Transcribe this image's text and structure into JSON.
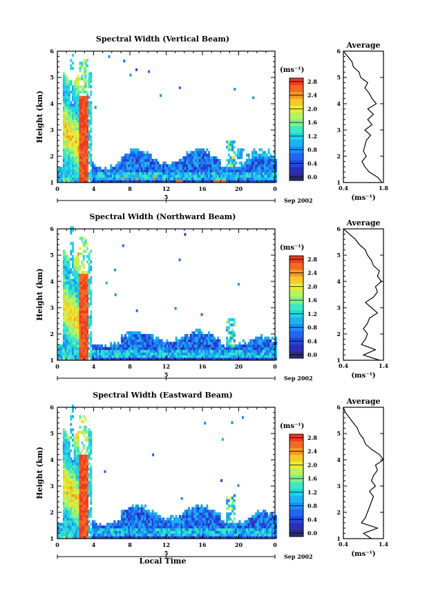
{
  "chart_data": [
    {
      "type": "heatmap",
      "title": "Spectral Width (Vertical Beam)",
      "ylabel": "Height (km)",
      "x_ticks": [
        "0",
        "4",
        "8",
        "12",
        "16",
        "20",
        "0"
      ],
      "y_ticks": [
        "1",
        "2",
        "3",
        "4",
        "5",
        "6"
      ],
      "xlim": [
        0,
        24
      ],
      "ylim": [
        1,
        6
      ],
      "day_label": "5",
      "date_label": "Sep 2002",
      "colorbar": {
        "unit_label": "(ms⁻¹)",
        "ticks": [
          "0.0",
          "0.4",
          "0.8",
          "1.2",
          "1.6",
          "2.0",
          "2.4",
          "2.8"
        ],
        "range": [
          0,
          3.0
        ]
      },
      "average": {
        "title": "Average",
        "x_ticks": [
          "0.4",
          "1.8"
        ],
        "xlim": [
          0.4,
          1.8
        ],
        "xlabel": "(ms⁻¹)",
        "heights": [
          1.0,
          1.2,
          1.4,
          1.6,
          1.8,
          2.0,
          2.2,
          2.4,
          2.6,
          2.8,
          3.0,
          3.2,
          3.4,
          3.6,
          3.8,
          4.0,
          4.2,
          4.4,
          4.6,
          4.8,
          5.0,
          5.2,
          5.4,
          5.6,
          5.8,
          6.0
        ],
        "values": [
          1.75,
          1.6,
          1.3,
          1.15,
          1.05,
          1.2,
          1.1,
          1.15,
          1.2,
          1.35,
          1.15,
          1.4,
          1.25,
          1.45,
          1.25,
          1.55,
          1.4,
          1.3,
          1.15,
          1.25,
          1.0,
          0.95,
          0.75,
          0.7,
          0.55,
          0.4
        ]
      },
      "seed": 11
    },
    {
      "type": "heatmap",
      "title": "Spectral Width (Northward Beam)",
      "ylabel": "Height (km)",
      "x_ticks": [
        "0",
        "4",
        "8",
        "12",
        "16",
        "20",
        "0"
      ],
      "y_ticks": [
        "1",
        "2",
        "3",
        "4",
        "5",
        "6"
      ],
      "xlim": [
        0,
        24
      ],
      "ylim": [
        1,
        6
      ],
      "day_label": "5",
      "date_label": "Sep 2002",
      "colorbar": {
        "unit_label": "(ms⁻¹)",
        "ticks": [
          "0.0",
          "0.4",
          "0.8",
          "1.2",
          "1.6",
          "2.0",
          "2.4",
          "2.8"
        ],
        "range": [
          0,
          3.0
        ]
      },
      "average": {
        "title": "Average",
        "x_ticks": [
          "0.4",
          "1.4"
        ],
        "xlim": [
          0.4,
          1.4
        ],
        "xlabel": "(ms⁻¹)",
        "heights": [
          1.0,
          1.2,
          1.4,
          1.6,
          1.8,
          2.0,
          2.2,
          2.4,
          2.6,
          2.8,
          3.0,
          3.2,
          3.4,
          3.6,
          3.8,
          4.0,
          4.2,
          4.4,
          4.6,
          4.8,
          5.0,
          5.2,
          5.4,
          5.6,
          5.8,
          6.0
        ],
        "values": [
          1.3,
          0.9,
          1.2,
          0.85,
          0.95,
          1.0,
          0.9,
          1.0,
          1.05,
          1.25,
          1.1,
          0.95,
          1.15,
          1.25,
          1.2,
          1.35,
          1.25,
          1.3,
          1.15,
          1.1,
          1.0,
          0.95,
          0.8,
          0.7,
          0.55,
          0.4
        ]
      },
      "seed": 23
    },
    {
      "type": "heatmap",
      "title": "Spectral Width (Eastward Beam)",
      "ylabel": "Height (km)",
      "x_ticks": [
        "0",
        "4",
        "8",
        "12",
        "16",
        "20",
        "0"
      ],
      "y_ticks": [
        "1",
        "2",
        "3",
        "4",
        "5",
        "6"
      ],
      "xlim": [
        0,
        24
      ],
      "ylim": [
        1,
        6
      ],
      "day_label": "5",
      "date_label": "Sep 2002",
      "xlabel": "Local Time",
      "colorbar": {
        "unit_label": "(ms⁻¹)",
        "ticks": [
          "0.0",
          "0.4",
          "0.8",
          "1.2",
          "1.6",
          "2.0",
          "2.4",
          "2.8"
        ],
        "range": [
          0,
          3.0
        ]
      },
      "average": {
        "title": "Average",
        "x_ticks": [
          "0.4",
          "1.4"
        ],
        "xlim": [
          0.4,
          1.4
        ],
        "xlabel": "(ms⁻¹)",
        "heights": [
          1.0,
          1.2,
          1.4,
          1.6,
          1.8,
          2.0,
          2.2,
          2.4,
          2.6,
          2.8,
          3.0,
          3.2,
          3.4,
          3.6,
          3.8,
          4.0,
          4.2,
          4.4,
          4.6,
          4.8,
          5.0,
          5.2,
          5.4,
          5.6,
          5.8,
          6.0
        ],
        "values": [
          1.1,
          0.9,
          1.25,
          0.85,
          0.95,
          1.0,
          1.05,
          1.1,
          1.15,
          1.05,
          1.2,
          1.1,
          1.15,
          1.25,
          1.2,
          1.4,
          1.3,
          1.1,
          0.95,
          0.9,
          0.8,
          0.75,
          0.65,
          0.55,
          0.45,
          0.4
        ]
      },
      "seed": 37
    }
  ]
}
